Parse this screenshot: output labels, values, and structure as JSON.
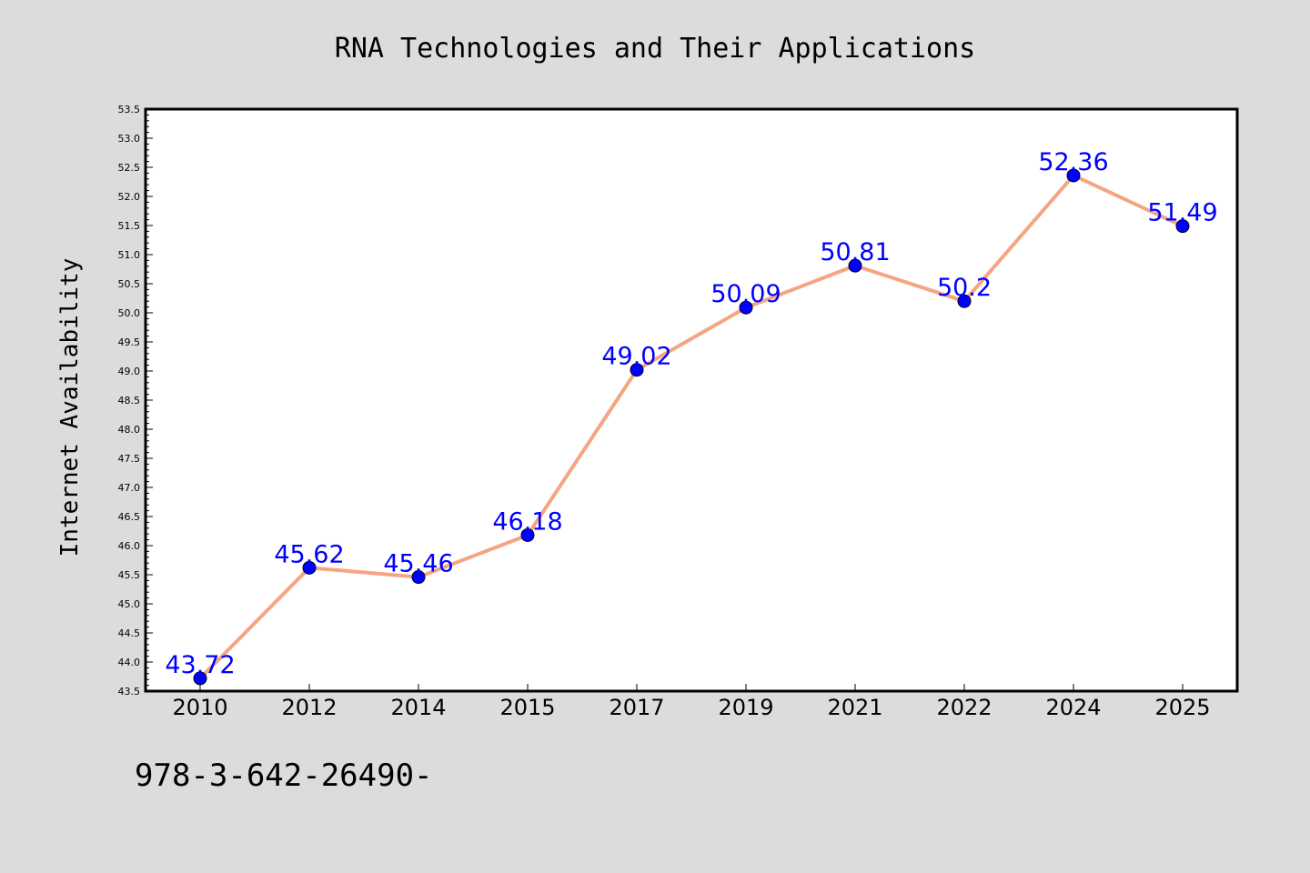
{
  "chart_data": {
    "type": "line",
    "title": "RNA Technologies and Their Applications",
    "xlabel": "",
    "ylabel": "Internet Availability",
    "categories": [
      "2010",
      "2012",
      "2014",
      "2015",
      "2017",
      "2019",
      "2021",
      "2022",
      "2024",
      "2025"
    ],
    "series": [
      {
        "values": [
          43.72,
          45.62,
          45.46,
          46.18,
          49.02,
          50.09,
          50.81,
          50.2,
          52.36,
          51.49
        ],
        "data_labels": [
          "43.72",
          "45.62",
          "45.46",
          "46.18",
          "49.02",
          "50.09",
          "50.81",
          "50.2",
          "52.36",
          "51.49"
        ]
      }
    ],
    "ylim": [
      43.5,
      53.5
    ],
    "y_major_ticks": [
      "43.5",
      "44.0",
      "44.5",
      "45.0",
      "45.5",
      "46.0",
      "46.5",
      "47.0",
      "47.5",
      "48.0",
      "48.5",
      "49.0",
      "49.5",
      "50.0",
      "50.5",
      "51.0",
      "51.5",
      "52.0",
      "52.5",
      "53.0",
      "53.5"
    ],
    "y_minor_step": 0.1,
    "grid": false,
    "legend": "none",
    "colors": {
      "background": "#dcdcdc",
      "plot_area": "#ffffff",
      "line": "#f4a582",
      "marker": "#0000ff",
      "data_label": "#0000ff",
      "axis_text": "#000000"
    }
  },
  "footer_text": "978-3-642-26490-"
}
